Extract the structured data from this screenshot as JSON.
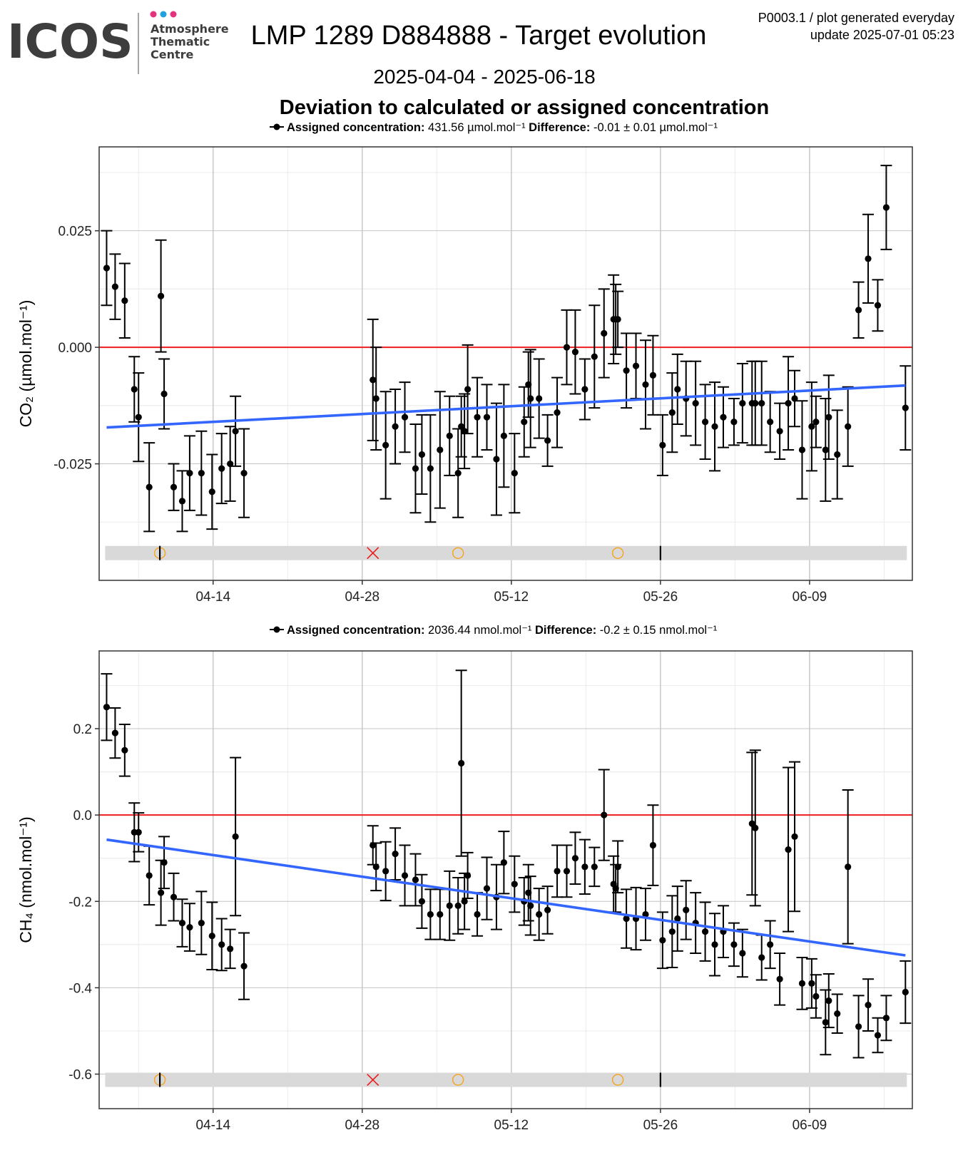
{
  "header": {
    "logo_text": "ICOS",
    "logo_sub": [
      "Atmosphere",
      "Thematic",
      "Centre"
    ],
    "title": "LMP 1289 D884888 - Target evolution",
    "date_range": "2025-04-04 - 2025-06-18",
    "plot_id": "P0003.1 / plot generated everyday",
    "update": "update  2025-07-01 05:23",
    "subtitle": "Deviation to calculated or assigned concentration"
  },
  "colors": {
    "points": "#000000",
    "zero_line": "#ee1c1c",
    "trend_line": "#3366ff",
    "flag_band": "#d9d9d9",
    "flag_x": "#ee1c1c",
    "flag_o": "#f5a623",
    "grid_major": "#c4c4c4",
    "grid_minor": "#ebebeb",
    "logo_dot1": "#e6327d",
    "logo_dot2": "#1fa0e0",
    "logo_dot3": "#e6327d"
  },
  "chart_data": [
    {
      "type": "scatter",
      "gas": "CO2",
      "ylabel": "CO₂ (µmol.mol⁻¹)",
      "legend": {
        "assigned_label": "Assigned concentration:",
        "assigned_value": "431.56 µmol.mol⁻¹",
        "difference_label": "Difference:",
        "difference_value": "-0.01 ± 0.01 µmol.mol⁻¹"
      },
      "x_ticks": [
        "04-14",
        "04-28",
        "05-12",
        "05-26",
        "06-09"
      ],
      "y_ticks": [
        "0.025",
        "0.000",
        "-0.025"
      ],
      "y_tick_values": [
        0.025,
        0.0,
        -0.025
      ],
      "xlim": [
        "2025-04-03",
        "2025-06-18"
      ],
      "ylim": [
        -0.05,
        0.043
      ],
      "trend": {
        "start": [
          "2025-04-04",
          -0.0172
        ],
        "end": [
          "2025-06-18",
          -0.0082
        ]
      },
      "flags": [
        {
          "date": "2025-04-09",
          "symbol": "o"
        },
        {
          "date": "2025-04-29",
          "symbol": "x"
        },
        {
          "date": "2025-05-07",
          "symbol": "o"
        },
        {
          "date": "2025-05-22",
          "symbol": "o"
        },
        {
          "date": "2025-04-09",
          "symbol": "bar"
        },
        {
          "date": "2025-05-26",
          "symbol": "bar"
        }
      ],
      "points": [
        [
          "2025-04-04.0",
          0.017,
          0.008
        ],
        [
          "2025-04-04.8",
          0.013,
          0.007
        ],
        [
          "2025-04-05.7",
          0.01,
          0.008
        ],
        [
          "2025-04-06.6",
          -0.009,
          0.007
        ],
        [
          "2025-04-07.0",
          -0.015,
          0.0095
        ],
        [
          "2025-04-08.0",
          -0.03,
          0.0095
        ],
        [
          "2025-04-09.1",
          0.011,
          0.012
        ],
        [
          "2025-04-09.4",
          -0.01,
          0.0075
        ],
        [
          "2025-04-10.3",
          -0.03,
          0.005
        ],
        [
          "2025-04-11.1",
          -0.033,
          0.0065
        ],
        [
          "2025-04-11.8",
          -0.027,
          0.008
        ],
        [
          "2025-04-12.9",
          -0.027,
          0.009
        ],
        [
          "2025-04-13.9",
          -0.031,
          0.008
        ],
        [
          "2025-04-14.8",
          -0.026,
          0.0075
        ],
        [
          "2025-04-15.6",
          -0.025,
          0.008
        ],
        [
          "2025-04-16.1",
          -0.018,
          0.0075
        ],
        [
          "2025-04-16.9",
          -0.027,
          0.0095
        ],
        [
          "2025-04-29.0",
          -0.007,
          0.013
        ],
        [
          "2025-04-29.3",
          -0.011,
          0.011
        ],
        [
          "2025-04-30.2",
          -0.021,
          0.0115
        ],
        [
          "2025-05-01.1",
          -0.017,
          0.008
        ],
        [
          "2025-05-02.0",
          -0.015,
          0.0075
        ],
        [
          "2025-05-03.0",
          -0.026,
          0.0095
        ],
        [
          "2025-05-03.6",
          -0.023,
          0.0085
        ],
        [
          "2025-05-04.4",
          -0.026,
          0.0115
        ],
        [
          "2025-05-05.3",
          -0.022,
          0.0125
        ],
        [
          "2025-05-06.2",
          -0.019,
          0.0085
        ],
        [
          "2025-05-07.0",
          -0.027,
          0.0095
        ],
        [
          "2025-05-07.3",
          -0.017,
          0.0065
        ],
        [
          "2025-05-07.6",
          -0.018,
          0.008
        ],
        [
          "2025-05-07.9",
          -0.009,
          0.0095
        ],
        [
          "2025-05-08.8",
          -0.015,
          0.0085
        ],
        [
          "2025-05-09.7",
          -0.015,
          0.007
        ],
        [
          "2025-05-10.6",
          -0.024,
          0.012
        ],
        [
          "2025-05-11.3",
          -0.019,
          0.011
        ],
        [
          "2025-05-12.3",
          -0.027,
          0.0085
        ],
        [
          "2025-05-13.2",
          -0.016,
          0.0075
        ],
        [
          "2025-05-13.6",
          -0.008,
          0.007
        ],
        [
          "2025-05-13.8",
          -0.011,
          0.0105
        ],
        [
          "2025-05-14.6",
          -0.011,
          0.0085
        ],
        [
          "2025-05-15.4",
          -0.02,
          0.0055
        ],
        [
          "2025-05-16.3",
          -0.014,
          0.0075
        ],
        [
          "2025-05-17.2",
          0.0,
          0.008
        ],
        [
          "2025-05-18.0",
          -0.001,
          0.009
        ],
        [
          "2025-05-18.9",
          -0.009,
          0.0065
        ],
        [
          "2025-05-19.8",
          -0.002,
          0.011
        ],
        [
          "2025-05-20.7",
          0.003,
          0.0095
        ],
        [
          "2025-05-21.6",
          0.006,
          0.0095
        ],
        [
          "2025-05-21.8",
          0.006,
          0.0075
        ],
        [
          "2025-05-22.0",
          0.006,
          0.006
        ],
        [
          "2025-05-22.8",
          -0.005,
          0.008
        ],
        [
          "2025-05-23.7",
          -0.004,
          0.007
        ],
        [
          "2025-05-24.6",
          -0.008,
          0.0095
        ],
        [
          "2025-05-25.3",
          -0.006,
          0.0085
        ],
        [
          "2025-05-26.2",
          -0.021,
          0.0065
        ],
        [
          "2025-05-27.1",
          -0.014,
          0.0085
        ],
        [
          "2025-05-27.6",
          -0.009,
          0.0075
        ],
        [
          "2025-05-28.4",
          -0.011,
          0.008
        ],
        [
          "2025-05-29.3",
          -0.012,
          0.009
        ],
        [
          "2025-05-30.2",
          -0.016,
          0.008
        ],
        [
          "2025-05-31.1",
          -0.017,
          0.0095
        ],
        [
          "2025-05-31.9",
          -0.015,
          0.0065
        ],
        [
          "2025-06-01.9",
          -0.016,
          0.005
        ],
        [
          "2025-06-02.7",
          -0.012,
          0.0085
        ],
        [
          "2025-06-03.6",
          -0.012,
          0.009
        ],
        [
          "2025-06-03.9",
          -0.012,
          0.009
        ],
        [
          "2025-06-04.5",
          -0.012,
          0.009
        ],
        [
          "2025-06-05.3",
          -0.016,
          0.0065
        ],
        [
          "2025-06-06.2",
          -0.018,
          0.006
        ],
        [
          "2025-06-07.0",
          -0.012,
          0.01
        ],
        [
          "2025-06-07.6",
          -0.011,
          0.006
        ],
        [
          "2025-06-08.3",
          -0.022,
          0.0105
        ],
        [
          "2025-06-09.2",
          -0.017,
          0.0095
        ],
        [
          "2025-06-09.6",
          -0.016,
          0.0055
        ],
        [
          "2025-06-10.5",
          -0.022,
          0.011
        ],
        [
          "2025-06-10.8",
          -0.015,
          0.009
        ],
        [
          "2025-06-11.6",
          -0.023,
          0.0095
        ],
        [
          "2025-06-12.6",
          -0.017,
          0.0085
        ],
        [
          "2025-06-13.6",
          0.008,
          0.006
        ],
        [
          "2025-06-14.5",
          0.019,
          0.0095
        ],
        [
          "2025-06-15.4",
          0.009,
          0.0055
        ],
        [
          "2025-06-16.2",
          0.03,
          0.009
        ],
        [
          "2025-06-18.0",
          -0.013,
          0.009
        ]
      ]
    },
    {
      "type": "scatter",
      "gas": "CH4",
      "ylabel": "CH₄ (nmol.mol⁻¹)",
      "legend": {
        "assigned_label": "Assigned concentration:",
        "assigned_value": "2036.44 nmol.mol⁻¹",
        "difference_label": "Difference:",
        "difference_value": "-0.2 ± 0.15 nmol.mol⁻¹"
      },
      "x_ticks": [
        "04-14",
        "04-28",
        "05-12",
        "05-26",
        "06-09"
      ],
      "y_ticks": [
        "0.2",
        "0.0",
        "-0.2",
        "-0.4",
        "-0.6"
      ],
      "y_tick_values": [
        0.2,
        0.0,
        -0.2,
        -0.4,
        -0.6
      ],
      "xlim": [
        "2025-04-03",
        "2025-06-18"
      ],
      "ylim": [
        -0.68,
        0.38
      ],
      "trend": {
        "start": [
          "2025-04-04",
          -0.057
        ],
        "end": [
          "2025-06-18",
          -0.325
        ]
      },
      "flags": [
        {
          "date": "2025-04-09",
          "symbol": "o"
        },
        {
          "date": "2025-04-29",
          "symbol": "x"
        },
        {
          "date": "2025-05-07",
          "symbol": "o"
        },
        {
          "date": "2025-05-22",
          "symbol": "o"
        },
        {
          "date": "2025-04-09",
          "symbol": "bar"
        },
        {
          "date": "2025-05-26",
          "symbol": "bar"
        }
      ],
      "points": [
        [
          "2025-04-04.0",
          0.25,
          0.077
        ],
        [
          "2025-04-04.8",
          0.19,
          0.058
        ],
        [
          "2025-04-05.7",
          0.15,
          0.06
        ],
        [
          "2025-04-06.6",
          -0.04,
          0.068
        ],
        [
          "2025-04-07.0",
          -0.04,
          0.045
        ],
        [
          "2025-04-08.0",
          -0.14,
          0.068
        ],
        [
          "2025-04-09.1",
          -0.18,
          0.075
        ],
        [
          "2025-04-09.4",
          -0.11,
          0.06
        ],
        [
          "2025-04-10.3",
          -0.19,
          0.055
        ],
        [
          "2025-04-11.1",
          -0.25,
          0.055
        ],
        [
          "2025-04-11.8",
          -0.26,
          0.055
        ],
        [
          "2025-04-12.9",
          -0.25,
          0.073
        ],
        [
          "2025-04-13.9",
          -0.28,
          0.078
        ],
        [
          "2025-04-14.8",
          -0.3,
          0.06
        ],
        [
          "2025-04-15.6",
          -0.31,
          0.045
        ],
        [
          "2025-04-16.1",
          -0.05,
          0.183
        ],
        [
          "2025-04-16.9",
          -0.35,
          0.077
        ],
        [
          "2025-04-29.0",
          -0.07,
          0.045
        ],
        [
          "2025-04-29.3",
          -0.12,
          0.055
        ],
        [
          "2025-04-30.2",
          -0.13,
          0.068
        ],
        [
          "2025-05-01.1",
          -0.09,
          0.06
        ],
        [
          "2025-05-02.0",
          -0.14,
          0.07
        ],
        [
          "2025-05-03.0",
          -0.15,
          0.06
        ],
        [
          "2025-05-03.6",
          -0.2,
          0.062
        ],
        [
          "2025-05-04.4",
          -0.23,
          0.058
        ],
        [
          "2025-05-05.3",
          -0.23,
          0.058
        ],
        [
          "2025-05-06.2",
          -0.21,
          0.08
        ],
        [
          "2025-05-07.0",
          -0.21,
          0.065
        ],
        [
          "2025-05-07.3",
          0.12,
          0.215
        ],
        [
          "2025-05-07.6",
          -0.2,
          0.065
        ],
        [
          "2025-05-07.9",
          -0.14,
          0.053
        ],
        [
          "2025-05-08.8",
          -0.23,
          0.05
        ],
        [
          "2025-05-09.7",
          -0.17,
          0.072
        ],
        [
          "2025-05-10.6",
          -0.19,
          0.075
        ],
        [
          "2025-05-11.3",
          -0.11,
          0.072
        ],
        [
          "2025-05-12.3",
          -0.16,
          0.065
        ],
        [
          "2025-05-13.2",
          -0.2,
          0.055
        ],
        [
          "2025-05-13.6",
          -0.18,
          0.065
        ],
        [
          "2025-05-13.8",
          -0.21,
          0.068
        ],
        [
          "2025-05-14.6",
          -0.23,
          0.06
        ],
        [
          "2025-05-15.4",
          -0.22,
          0.055
        ],
        [
          "2025-05-16.3",
          -0.13,
          0.06
        ],
        [
          "2025-05-17.2",
          -0.13,
          0.06
        ],
        [
          "2025-05-18.0",
          -0.1,
          0.06
        ],
        [
          "2025-05-18.9",
          -0.12,
          0.063
        ],
        [
          "2025-05-19.8",
          -0.12,
          0.045
        ],
        [
          "2025-05-20.7",
          0.0,
          0.105
        ],
        [
          "2025-05-21.6",
          -0.16,
          0.065
        ],
        [
          "2025-05-21.8",
          -0.17,
          0.055
        ],
        [
          "2025-05-22.0",
          -0.12,
          0.06
        ],
        [
          "2025-05-22.8",
          -0.24,
          0.068
        ],
        [
          "2025-05-23.7",
          -0.24,
          0.072
        ],
        [
          "2025-05-24.6",
          -0.23,
          0.06
        ],
        [
          "2025-05-25.3",
          -0.07,
          0.093
        ],
        [
          "2025-05-26.2",
          -0.29,
          0.065
        ],
        [
          "2025-05-27.1",
          -0.27,
          0.083
        ],
        [
          "2025-05-27.6",
          -0.24,
          0.075
        ],
        [
          "2025-05-28.4",
          -0.22,
          0.068
        ],
        [
          "2025-05-29.3",
          -0.25,
          0.07
        ],
        [
          "2025-05-30.2",
          -0.27,
          0.068
        ],
        [
          "2025-05-31.1",
          -0.3,
          0.072
        ],
        [
          "2025-05-31.9",
          -0.27,
          0.06
        ],
        [
          "2025-06-01.9",
          -0.3,
          0.05
        ],
        [
          "2025-06-02.7",
          -0.32,
          0.055
        ],
        [
          "2025-06-03.6",
          -0.02,
          0.165
        ],
        [
          "2025-06-03.9",
          -0.03,
          0.18
        ],
        [
          "2025-06-04.5",
          -0.33,
          0.052
        ],
        [
          "2025-06-05.3",
          -0.3,
          0.055
        ],
        [
          "2025-06-06.2",
          -0.38,
          0.06
        ],
        [
          "2025-06-07.0",
          -0.08,
          0.19
        ],
        [
          "2025-06-07.6",
          -0.05,
          0.173
        ],
        [
          "2025-06-08.3",
          -0.39,
          0.06
        ],
        [
          "2025-06-09.2",
          -0.39,
          0.057
        ],
        [
          "2025-06-09.6",
          -0.42,
          0.05
        ],
        [
          "2025-06-10.5",
          -0.48,
          0.075
        ],
        [
          "2025-06-10.8",
          -0.43,
          0.062
        ],
        [
          "2025-06-11.6",
          -0.46,
          0.045
        ],
        [
          "2025-06-12.6",
          -0.12,
          0.178
        ],
        [
          "2025-06-13.6",
          -0.49,
          0.072
        ],
        [
          "2025-06-14.5",
          -0.44,
          0.06
        ],
        [
          "2025-06-15.4",
          -0.51,
          0.04
        ],
        [
          "2025-06-16.2",
          -0.47,
          0.052
        ],
        [
          "2025-06-18.0",
          -0.41,
          0.072
        ]
      ]
    }
  ]
}
